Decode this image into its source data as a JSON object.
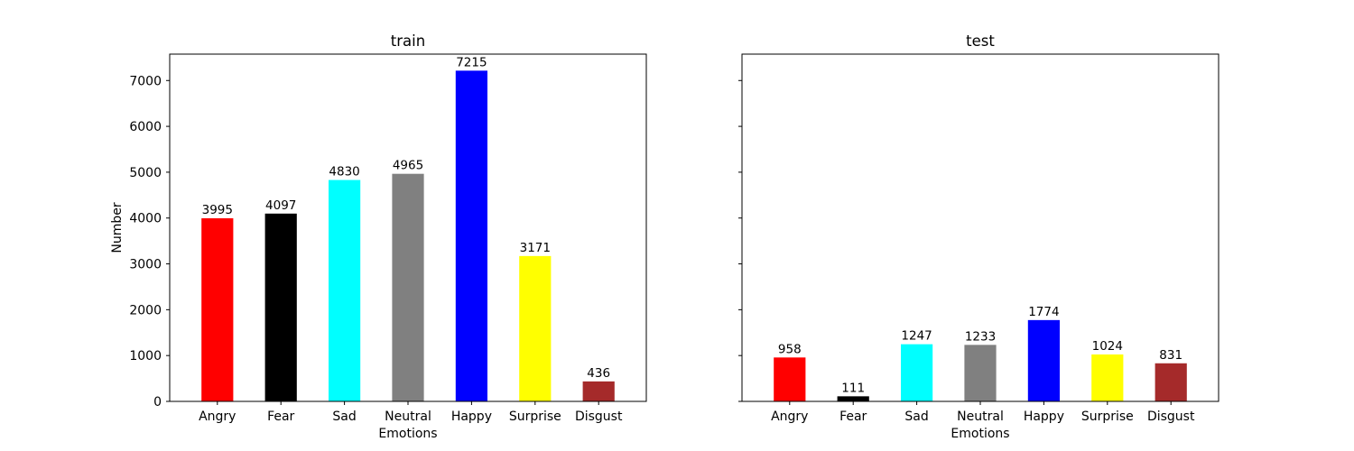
{
  "chart_data": [
    {
      "type": "bar",
      "title": "train",
      "xlabel": "Emotions",
      "ylabel": "Number",
      "categories": [
        "Angry",
        "Fear",
        "Sad",
        "Neutral",
        "Happy",
        "Surprise",
        "Disgust"
      ],
      "values": [
        3995,
        4097,
        4830,
        4965,
        7215,
        3171,
        436
      ],
      "colors": [
        "#ff0000",
        "#000000",
        "#00ffff",
        "#808080",
        "#0000ff",
        "#ffff00",
        "#a52a2a"
      ],
      "ylim": [
        0,
        7576
      ],
      "yticks": [
        0,
        1000,
        2000,
        3000,
        4000,
        5000,
        6000,
        7000
      ],
      "show_ytick_labels": true,
      "grid": false
    },
    {
      "type": "bar",
      "title": "test",
      "xlabel": "Emotions",
      "ylabel": "",
      "categories": [
        "Angry",
        "Fear",
        "Sad",
        "Neutral",
        "Happy",
        "Surprise",
        "Disgust"
      ],
      "values": [
        958,
        111,
        1247,
        1233,
        1774,
        1024,
        831
      ],
      "colors": [
        "#ff0000",
        "#000000",
        "#00ffff",
        "#808080",
        "#0000ff",
        "#ffff00",
        "#a52a2a"
      ],
      "ylim": [
        0,
        7576
      ],
      "yticks": [
        0,
        1000,
        2000,
        3000,
        4000,
        5000,
        6000,
        7000
      ],
      "show_ytick_labels": false,
      "grid": false
    }
  ]
}
